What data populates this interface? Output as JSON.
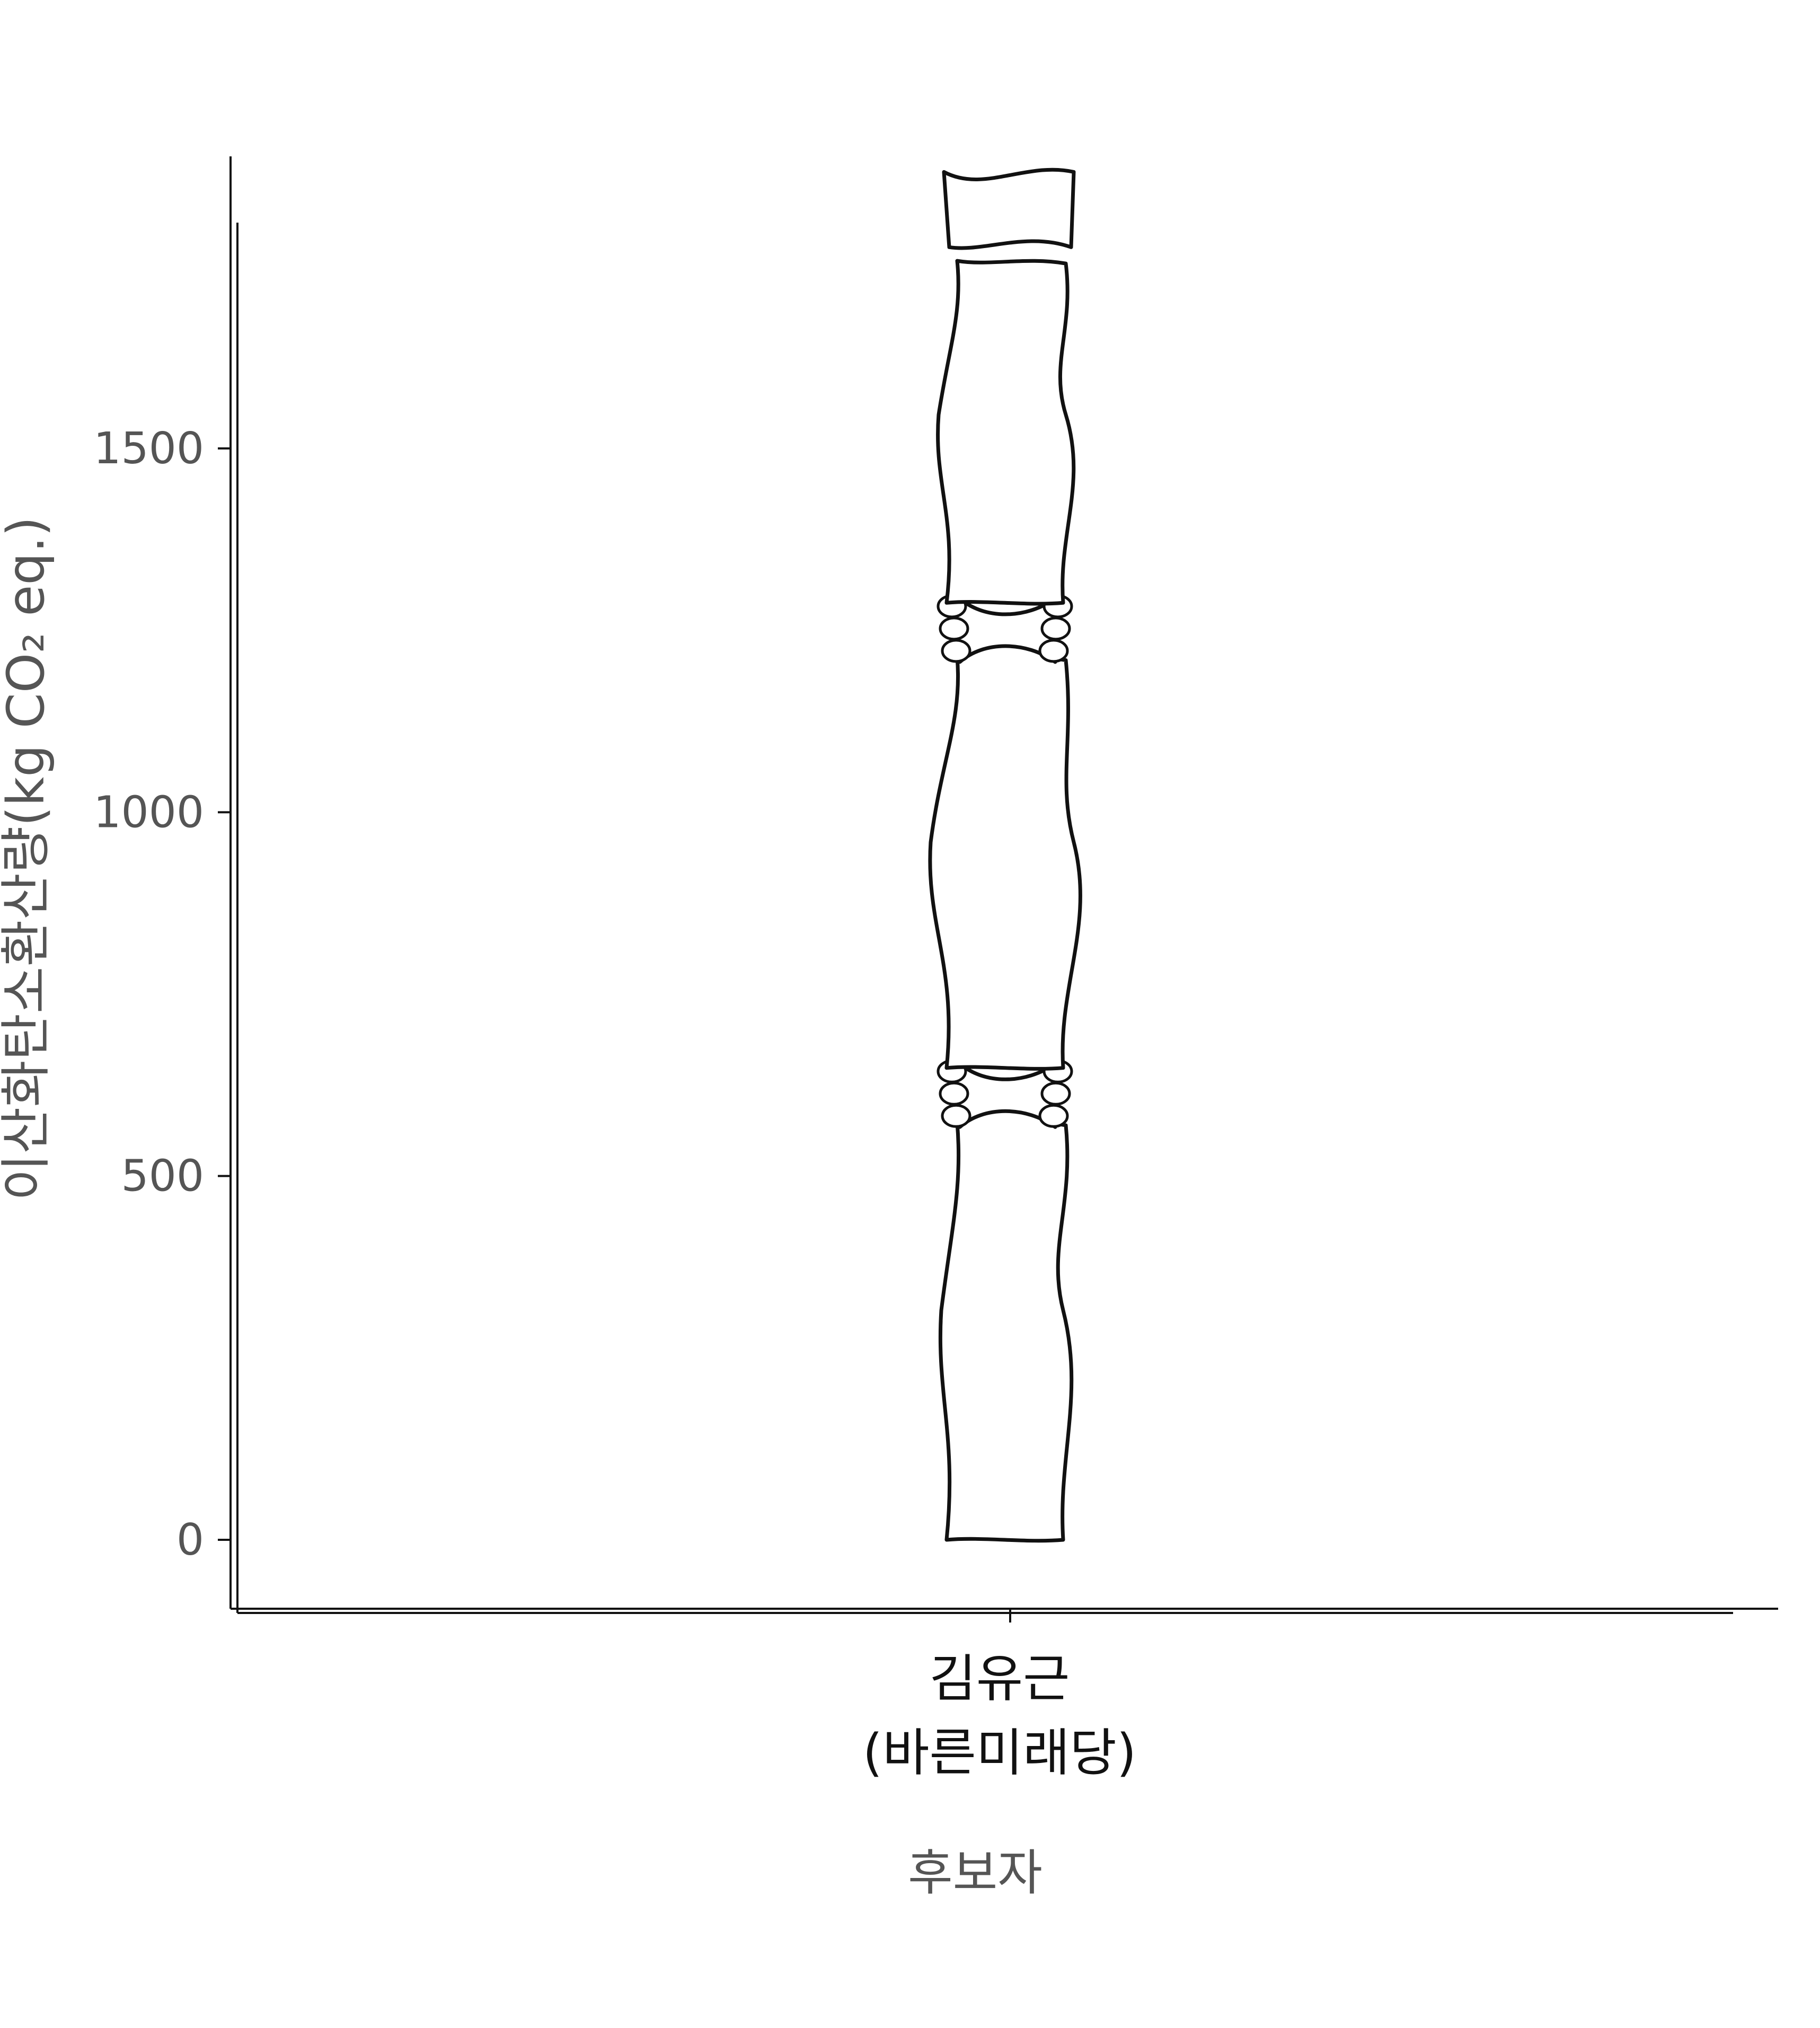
{
  "chart_data": {
    "type": "bar",
    "categories": [
      "김유근\n(바른미래당)"
    ],
    "category_lines": [
      [
        "김유근",
        "(바른미래당)"
      ]
    ],
    "values": [
      1880
    ],
    "xlabel": "후보자",
    "ylabel": "이산화탄소환산량(kg CO₂ eq.)",
    "ylim": [
      -95,
      1880
    ],
    "yticks": [
      0,
      500,
      1000,
      1500
    ],
    "grid": false,
    "bar_style": "hand-drawn bone (pictogram)",
    "colors": {
      "axis": "#111111",
      "tick_text": "#555555",
      "category_text": "#111111"
    }
  }
}
